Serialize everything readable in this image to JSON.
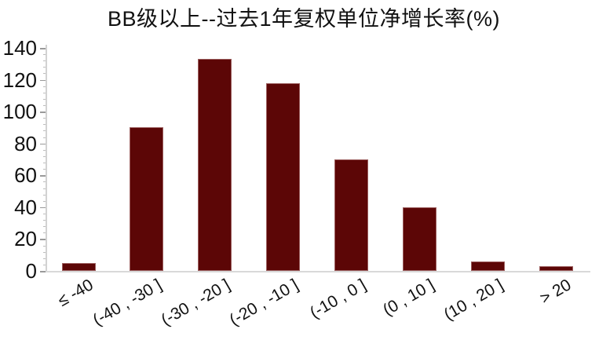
{
  "chart_data": {
    "type": "bar",
    "title": "BB级以上--过去1年复权单位净增长率(%)",
    "categories": [
      "≤ -40",
      "(-40 , -30 ]",
      "(-30 , -20 ]",
      "(-20 , -10 ]",
      "(-10 , 0 ]",
      "(0 , 10 ]",
      "(10 , 20 ]",
      "> 20"
    ],
    "values": [
      5,
      90,
      133,
      118,
      70,
      40,
      6,
      3
    ],
    "xlabel": "",
    "ylabel": "",
    "ylim": [
      0,
      140
    ],
    "yticks": [
      0,
      20,
      40,
      60,
      80,
      100,
      120,
      140
    ],
    "minor_tick_step": 4,
    "grid": false,
    "legend": "none",
    "bar_color": "#5c0606",
    "axis_color": "#d2d2d2",
    "tick_color": "#9a9a9a",
    "text_color": "#111111"
  }
}
